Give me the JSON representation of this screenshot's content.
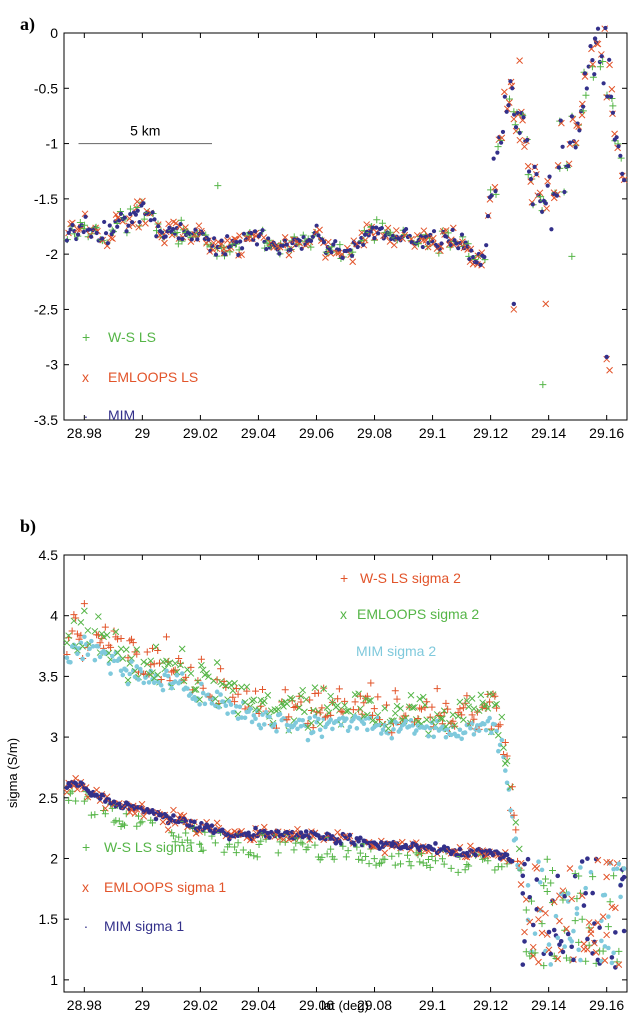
{
  "colors": {
    "ws": "#55b547",
    "em": "#e2542a",
    "mim": "#33308a",
    "mim2": "#7fc9dc"
  },
  "chart_data": [
    {
      "type": "scatter",
      "panel_label": "a)",
      "title": "",
      "xlabel": "",
      "ylabel": "",
      "xlim": [
        28.973,
        29.167
      ],
      "ylim": [
        -3.5,
        0
      ],
      "xticks": [
        "28.98",
        "29",
        "29.02",
        "29.04",
        "29.06",
        "29.08",
        "29.1",
        "29.12",
        "29.14",
        "29.16"
      ],
      "yticks": [
        "0",
        "-0.5",
        "-1",
        "-1.5",
        "-2",
        "-2.5",
        "-3",
        "-3.5"
      ],
      "scale_bar": {
        "label": "5 km",
        "x_start": 28.978,
        "x_end": 29.024,
        "y": -1
      },
      "legend": [
        {
          "name": "W-S LS",
          "marker": "+",
          "color": "#55b547"
        },
        {
          "name": "EMLOOPS LS",
          "marker": "x",
          "color": "#e2542a"
        },
        {
          "name": "MIM",
          "marker": ".",
          "color": "#33308a"
        }
      ],
      "trend": {
        "x": [
          28.974,
          28.98,
          28.985,
          28.99,
          28.995,
          29.0,
          29.005,
          29.01,
          29.02,
          29.03,
          29.04,
          29.05,
          29.06,
          29.07,
          29.08,
          29.09,
          29.1,
          29.11,
          29.115,
          29.118,
          29.12,
          29.122,
          29.125,
          29.127,
          29.13,
          29.132,
          29.135,
          29.14,
          29.145,
          29.15,
          29.155,
          29.16,
          29.163,
          29.166
        ],
        "y": [
          -1.85,
          -1.75,
          -1.85,
          -1.75,
          -1.7,
          -1.6,
          -1.75,
          -1.8,
          -1.85,
          -1.95,
          -1.85,
          -1.95,
          -1.85,
          -2.0,
          -1.8,
          -1.85,
          -1.9,
          -1.85,
          -2.05,
          -2.05,
          -1.5,
          -1.2,
          -0.7,
          -0.4,
          -0.9,
          -1.0,
          -1.4,
          -1.6,
          -1.1,
          -0.8,
          -0.3,
          -0.2,
          -0.8,
          -1.5
        ]
      },
      "outliers": [
        {
          "series": "EMLOOPS LS",
          "x": 29.128,
          "y": -2.5
        },
        {
          "series": "EMLOOPS LS",
          "x": 29.13,
          "y": -0.25
        },
        {
          "series": "EMLOOPS LS",
          "x": 29.157,
          "y": -0.1
        },
        {
          "series": "EMLOOPS LS",
          "x": 29.16,
          "y": -2.95
        },
        {
          "series": "EMLOOPS LS",
          "x": 29.161,
          "y": -3.05
        },
        {
          "series": "EMLOOPS LS",
          "x": 29.139,
          "y": -2.45
        },
        {
          "series": "W-S LS",
          "x": 29.138,
          "y": -3.18
        },
        {
          "series": "W-S LS",
          "x": 29.026,
          "y": -1.38
        },
        {
          "series": "W-S LS",
          "x": 29.148,
          "y": -2.02
        },
        {
          "series": "MIM",
          "x": 29.128,
          "y": -2.45
        },
        {
          "series": "MIM",
          "x": 29.156,
          "y": -0.05
        },
        {
          "series": "MIM",
          "x": 29.16,
          "y": -2.93
        }
      ]
    },
    {
      "type": "scatter",
      "panel_label": "b)",
      "title": "",
      "xlabel": "lat (deg)",
      "ylabel": "sigma (S/m)",
      "xlim": [
        28.973,
        29.167
      ],
      "ylim": [
        0.9,
        4.5
      ],
      "xticks": [
        "28.98",
        "29",
        "29.02",
        "29.04",
        "29.06",
        "29.08",
        "29.1",
        "29.12",
        "29.14",
        "29.16"
      ],
      "yticks": [
        "4.5",
        "4",
        "3.5",
        "3",
        "2.5",
        "2",
        "1.5",
        "1"
      ],
      "legend": [
        {
          "name": "W-S LS sigma 2",
          "marker": "+",
          "color": "#e2542a"
        },
        {
          "name": "EMLOOPS sigma 2",
          "marker": "x",
          "color": "#55b547"
        },
        {
          "name": "MIM sigma 2",
          "marker": ".",
          "color": "#7fc9dc"
        },
        {
          "name": "W-S LS sigma 1",
          "marker": "+",
          "color": "#55b547"
        },
        {
          "name": "EMLOOPS sigma 1",
          "marker": "x",
          "color": "#e2542a"
        },
        {
          "name": "MIM sigma 1",
          "marker": ".",
          "color": "#33308a"
        }
      ],
      "sigma2_trend": {
        "x": [
          28.974,
          28.98,
          28.99,
          29.0,
          29.01,
          29.02,
          29.03,
          29.04,
          29.05,
          29.06,
          29.07,
          29.08,
          29.09,
          29.1,
          29.11,
          29.12,
          29.124,
          29.126,
          29.128,
          29.13
        ],
        "y": [
          3.7,
          3.75,
          3.6,
          3.5,
          3.45,
          3.35,
          3.25,
          3.15,
          3.1,
          3.1,
          3.12,
          3.1,
          3.08,
          3.05,
          3.05,
          3.15,
          2.9,
          2.6,
          2.2,
          1.9
        ]
      },
      "sigma1_trend": {
        "x": [
          28.974,
          28.98,
          28.99,
          29.0,
          29.01,
          29.02,
          29.03,
          29.04,
          29.05,
          29.06,
          29.07,
          29.08,
          29.09,
          29.1,
          29.11,
          29.12,
          29.125,
          29.128
        ],
        "y": [
          2.62,
          2.6,
          2.45,
          2.4,
          2.32,
          2.27,
          2.2,
          2.2,
          2.2,
          2.2,
          2.15,
          2.12,
          2.1,
          2.08,
          2.05,
          2.05,
          2.02,
          1.98
        ]
      },
      "tail": {
        "x": [
          29.13,
          29.167
        ],
        "y": [
          1.1,
          2.0
        ]
      }
    }
  ]
}
